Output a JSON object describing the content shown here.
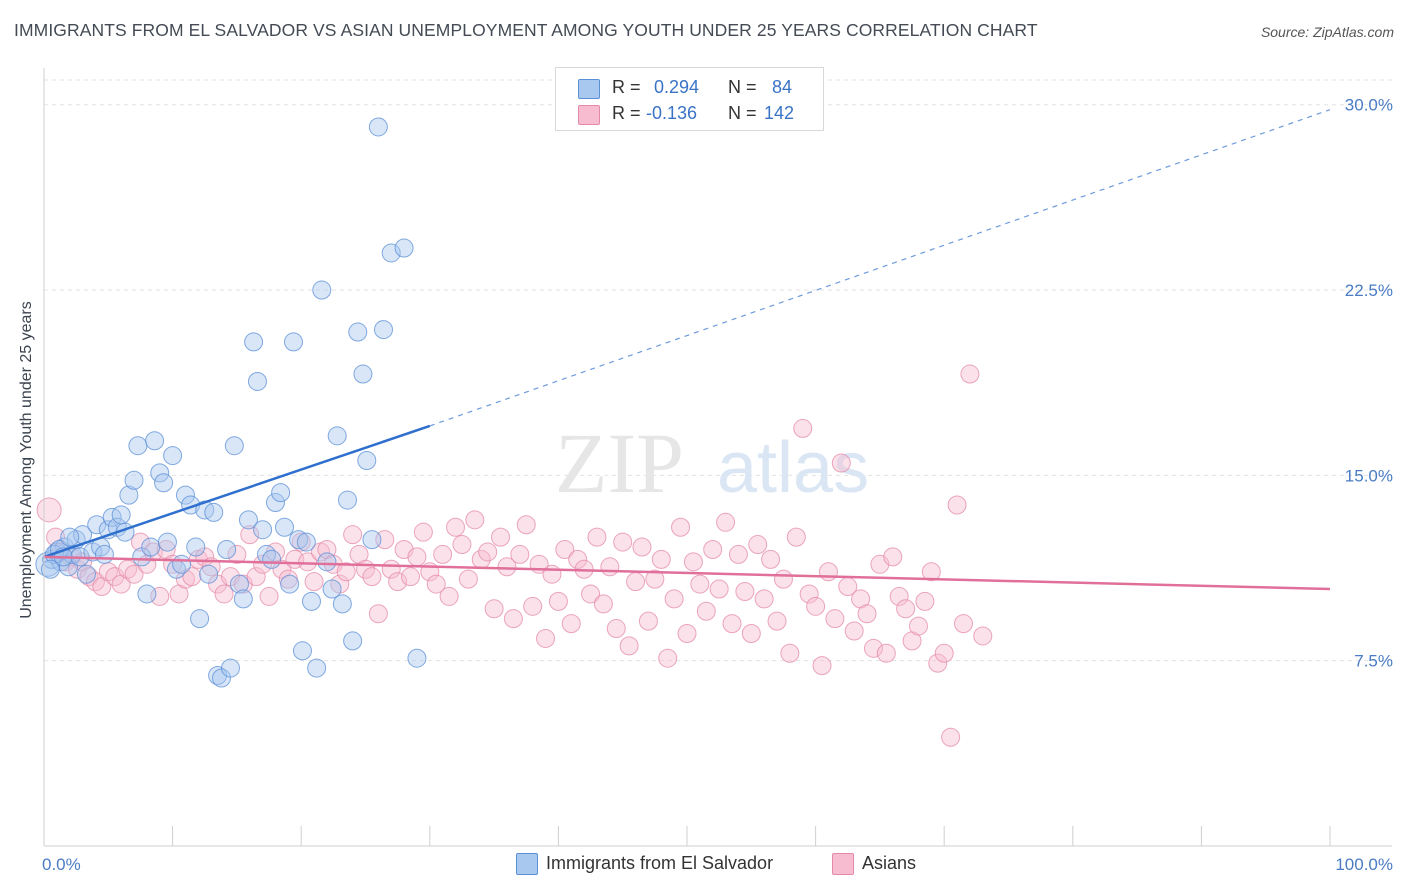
{
  "title": "IMMIGRANTS FROM EL SALVADOR VS ASIAN UNEMPLOYMENT AMONG YOUTH UNDER 25 YEARS CORRELATION CHART",
  "source": "Source: ZipAtlas.com",
  "watermark": "ZIPatlas",
  "colors": {
    "blue_fill": "#a9c8f0",
    "blue_stroke": "#5b8fd6",
    "blue_line": "#2f6fce",
    "pink_fill": "#f7bcd0",
    "pink_stroke": "#e48aa8",
    "pink_line": "#e0709a",
    "tick_text": "#4a7cc4"
  },
  "legend": {
    "rows": [
      {
        "r_label": "R =",
        "r_value": "0.294",
        "n_label": "N =",
        "n_value": "84"
      },
      {
        "r_label": "R =",
        "r_value": "-0.136",
        "n_label": "N =",
        "n_value": "142"
      }
    ]
  },
  "bottom_legend": {
    "series1": "Immigrants from El Salvador",
    "series2": "Asians"
  },
  "chart_data": {
    "type": "scatter",
    "title": "IMMIGRANTS FROM EL SALVADOR VS ASIAN UNEMPLOYMENT AMONG YOUTH UNDER 25 YEARS CORRELATION CHART",
    "xlabel": "",
    "ylabel": "Unemployment Among Youth under 25 years",
    "xlim": [
      0,
      100
    ],
    "ylim": [
      0,
      31
    ],
    "x_tick_labels": [
      "0.0%",
      "100.0%"
    ],
    "y_ticks": [
      7.5,
      15.0,
      22.5,
      30.0
    ],
    "y_tick_labels": [
      "7.5%",
      "15.0%",
      "22.5%",
      "30.0%"
    ],
    "grid": "horizontal dashed",
    "legend_position": "top-center",
    "series": [
      {
        "name": "Immigrants from El Salvador",
        "color": "#5b8fd6",
        "r": 0.294,
        "n": 84,
        "trend": {
          "x": [
            0,
            30
          ],
          "y": [
            11.7,
            17.0
          ],
          "dashed_to": [
            100,
            29.8
          ]
        },
        "points": [
          [
            0.3,
            11.4
          ],
          [
            0.6,
            11.6
          ],
          [
            1.0,
            11.9
          ],
          [
            1.3,
            11.5
          ],
          [
            1.6,
            12.1
          ],
          [
            1.9,
            11.3
          ],
          [
            2.2,
            11.8
          ],
          [
            2.5,
            12.4
          ],
          [
            0.8,
            11.8
          ],
          [
            1.2,
            12.0
          ],
          [
            1.5,
            11.7
          ],
          [
            0.5,
            11.2
          ],
          [
            2.8,
            11.7
          ],
          [
            3.0,
            12.6
          ],
          [
            3.3,
            11.0
          ],
          [
            3.8,
            11.9
          ],
          [
            2.0,
            12.5
          ],
          [
            4.1,
            13.0
          ],
          [
            4.4,
            12.1
          ],
          [
            4.7,
            11.8
          ],
          [
            5.0,
            12.8
          ],
          [
            5.3,
            13.3
          ],
          [
            5.7,
            12.9
          ],
          [
            6.0,
            13.4
          ],
          [
            6.3,
            12.7
          ],
          [
            6.6,
            14.2
          ],
          [
            7.0,
            14.8
          ],
          [
            7.3,
            16.2
          ],
          [
            7.6,
            11.7
          ],
          [
            8.0,
            10.2
          ],
          [
            8.3,
            12.1
          ],
          [
            8.6,
            16.4
          ],
          [
            9.0,
            15.1
          ],
          [
            9.3,
            14.7
          ],
          [
            9.6,
            12.3
          ],
          [
            10.0,
            15.8
          ],
          [
            10.3,
            11.2
          ],
          [
            10.7,
            11.4
          ],
          [
            11.0,
            14.2
          ],
          [
            11.4,
            13.8
          ],
          [
            11.8,
            12.1
          ],
          [
            12.1,
            9.2
          ],
          [
            12.5,
            13.6
          ],
          [
            12.8,
            11.0
          ],
          [
            13.2,
            13.5
          ],
          [
            13.5,
            6.9
          ],
          [
            13.8,
            6.8
          ],
          [
            14.2,
            12.0
          ],
          [
            14.5,
            7.2
          ],
          [
            14.8,
            16.2
          ],
          [
            15.2,
            10.6
          ],
          [
            15.5,
            10.0
          ],
          [
            15.9,
            13.2
          ],
          [
            16.3,
            20.4
          ],
          [
            16.6,
            18.8
          ],
          [
            17.0,
            12.8
          ],
          [
            17.3,
            11.8
          ],
          [
            17.7,
            11.6
          ],
          [
            18.0,
            13.9
          ],
          [
            18.4,
            14.3
          ],
          [
            18.7,
            12.9
          ],
          [
            19.1,
            10.6
          ],
          [
            19.4,
            20.4
          ],
          [
            19.8,
            12.4
          ],
          [
            20.1,
            7.9
          ],
          [
            20.4,
            12.3
          ],
          [
            20.8,
            9.9
          ],
          [
            21.2,
            7.2
          ],
          [
            21.6,
            22.5
          ],
          [
            22.0,
            11.5
          ],
          [
            22.4,
            10.4
          ],
          [
            22.8,
            16.6
          ],
          [
            23.2,
            9.8
          ],
          [
            23.6,
            14.0
          ],
          [
            24.0,
            8.3
          ],
          [
            24.4,
            20.8
          ],
          [
            24.8,
            19.1
          ],
          [
            25.1,
            15.6
          ],
          [
            25.5,
            12.4
          ],
          [
            26.0,
            29.1
          ],
          [
            26.4,
            20.9
          ],
          [
            27.0,
            24.0
          ],
          [
            28.0,
            24.2
          ],
          [
            29.0,
            7.6
          ]
        ]
      },
      {
        "name": "Asians",
        "color": "#e48aa8",
        "r": -0.136,
        "n": 142,
        "trend": {
          "x": [
            0,
            100
          ],
          "y": [
            11.7,
            10.4
          ]
        },
        "points": [
          [
            0.4,
            13.6
          ],
          [
            0.9,
            12.5
          ],
          [
            1.3,
            11.9
          ],
          [
            1.7,
            11.5
          ],
          [
            2.1,
            11.7
          ],
          [
            2.6,
            11.2
          ],
          [
            3.0,
            11.5
          ],
          [
            3.5,
            10.9
          ],
          [
            4.0,
            10.7
          ],
          [
            4.5,
            10.5
          ],
          [
            5.0,
            11.1
          ],
          [
            5.5,
            10.9
          ],
          [
            6.0,
            10.6
          ],
          [
            6.5,
            11.2
          ],
          [
            7.0,
            11.0
          ],
          [
            7.5,
            12.3
          ],
          [
            8.0,
            11.4
          ],
          [
            8.5,
            11.9
          ],
          [
            9.0,
            10.1
          ],
          [
            9.5,
            12.0
          ],
          [
            10.0,
            11.4
          ],
          [
            10.5,
            10.2
          ],
          [
            11.0,
            10.8
          ],
          [
            11.5,
            10.9
          ],
          [
            12.0,
            11.6
          ],
          [
            12.5,
            11.7
          ],
          [
            13.0,
            11.3
          ],
          [
            13.5,
            10.6
          ],
          [
            14.0,
            10.2
          ],
          [
            14.5,
            10.9
          ],
          [
            15.0,
            11.8
          ],
          [
            15.5,
            10.6
          ],
          [
            16.0,
            12.6
          ],
          [
            16.5,
            10.9
          ],
          [
            17.0,
            11.4
          ],
          [
            17.5,
            10.1
          ],
          [
            18.0,
            11.9
          ],
          [
            18.5,
            11.2
          ],
          [
            19.0,
            10.8
          ],
          [
            19.5,
            11.6
          ],
          [
            20.0,
            12.3
          ],
          [
            20.5,
            11.5
          ],
          [
            21.0,
            10.7
          ],
          [
            21.5,
            11.9
          ],
          [
            22.0,
            12.0
          ],
          [
            22.5,
            11.4
          ],
          [
            23.0,
            10.6
          ],
          [
            23.5,
            11.1
          ],
          [
            24.0,
            12.6
          ],
          [
            24.5,
            11.8
          ],
          [
            25.0,
            11.2
          ],
          [
            25.5,
            10.9
          ],
          [
            26.0,
            9.4
          ],
          [
            26.5,
            12.4
          ],
          [
            27.0,
            11.2
          ],
          [
            27.5,
            10.7
          ],
          [
            28.0,
            12.0
          ],
          [
            28.5,
            10.9
          ],
          [
            29.0,
            11.7
          ],
          [
            29.5,
            12.7
          ],
          [
            30.0,
            11.1
          ],
          [
            30.5,
            10.6
          ],
          [
            31.0,
            11.8
          ],
          [
            31.5,
            10.1
          ],
          [
            32.0,
            12.9
          ],
          [
            32.5,
            12.2
          ],
          [
            33.0,
            10.8
          ],
          [
            33.5,
            13.2
          ],
          [
            34.0,
            11.6
          ],
          [
            34.5,
            11.9
          ],
          [
            35.0,
            9.6
          ],
          [
            35.5,
            12.5
          ],
          [
            36.0,
            11.3
          ],
          [
            36.5,
            9.2
          ],
          [
            37.0,
            11.8
          ],
          [
            37.5,
            13.0
          ],
          [
            38.0,
            9.7
          ],
          [
            38.5,
            11.4
          ],
          [
            39.0,
            8.4
          ],
          [
            39.5,
            11.0
          ],
          [
            40.0,
            9.9
          ],
          [
            40.5,
            12.0
          ],
          [
            41.0,
            9.0
          ],
          [
            41.5,
            11.6
          ],
          [
            42.0,
            11.2
          ],
          [
            42.5,
            10.2
          ],
          [
            43.0,
            12.5
          ],
          [
            43.5,
            9.8
          ],
          [
            44.0,
            11.3
          ],
          [
            44.5,
            8.8
          ],
          [
            45.0,
            12.3
          ],
          [
            45.5,
            8.1
          ],
          [
            46.0,
            10.7
          ],
          [
            46.5,
            12.1
          ],
          [
            47.0,
            9.1
          ],
          [
            47.5,
            10.8
          ],
          [
            48.0,
            11.6
          ],
          [
            48.5,
            7.6
          ],
          [
            49.0,
            10.0
          ],
          [
            49.5,
            12.9
          ],
          [
            50.0,
            8.6
          ],
          [
            50.5,
            11.5
          ],
          [
            51.0,
            10.6
          ],
          [
            51.5,
            9.5
          ],
          [
            52.0,
            12.0
          ],
          [
            52.5,
            10.4
          ],
          [
            53.0,
            13.1
          ],
          [
            53.5,
            9.0
          ],
          [
            54.0,
            11.8
          ],
          [
            54.5,
            10.3
          ],
          [
            55.0,
            8.6
          ],
          [
            55.5,
            12.2
          ],
          [
            56.0,
            10.0
          ],
          [
            56.5,
            11.6
          ],
          [
            57.0,
            9.1
          ],
          [
            57.5,
            10.8
          ],
          [
            58.0,
            7.8
          ],
          [
            58.5,
            12.5
          ],
          [
            59.0,
            16.9
          ],
          [
            59.5,
            10.2
          ],
          [
            60.0,
            9.7
          ],
          [
            60.5,
            7.3
          ],
          [
            61.0,
            11.1
          ],
          [
            61.5,
            9.2
          ],
          [
            62.0,
            15.5
          ],
          [
            62.5,
            10.5
          ],
          [
            63.0,
            8.7
          ],
          [
            63.5,
            10.0
          ],
          [
            64.0,
            9.4
          ],
          [
            64.5,
            8.0
          ],
          [
            65.0,
            11.4
          ],
          [
            65.5,
            7.8
          ],
          [
            66.0,
            11.7
          ],
          [
            66.5,
            10.1
          ],
          [
            67.0,
            9.6
          ],
          [
            67.5,
            8.3
          ],
          [
            68.0,
            8.9
          ],
          [
            68.5,
            9.9
          ],
          [
            69.0,
            11.1
          ],
          [
            69.5,
            7.4
          ],
          [
            70.0,
            7.8
          ],
          [
            70.5,
            4.4
          ],
          [
            71.0,
            13.8
          ],
          [
            71.5,
            9.0
          ],
          [
            72.0,
            19.1
          ],
          [
            73.0,
            8.5
          ]
        ]
      }
    ]
  }
}
